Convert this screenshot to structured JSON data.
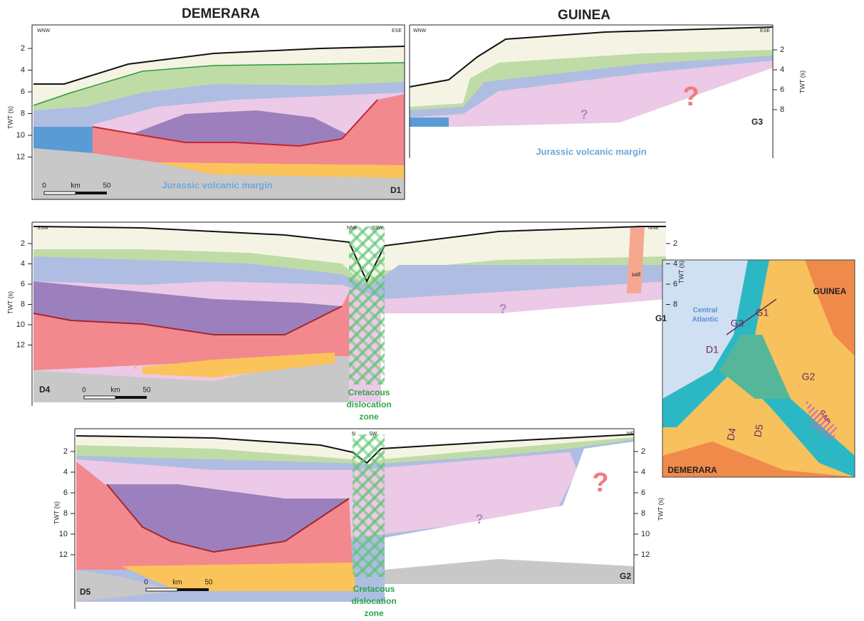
{
  "titles": {
    "demerara": "DEMERARA",
    "guinea": "GUINEA"
  },
  "axis_title": "TWT (s)",
  "sections": [
    {
      "name": "D1",
      "directions": [
        "WNW",
        "ESE"
      ],
      "ticks": [
        2,
        4,
        6,
        8,
        10,
        12
      ],
      "scale": [
        0,
        "km",
        50
      ],
      "annotation": "Jurassic volcanic margin"
    },
    {
      "name": "G3",
      "directions": [
        "WNW",
        "ESE"
      ],
      "ticks": [
        2,
        4,
        6,
        8
      ],
      "annotation": "Jurassic volcanic margin",
      "questions": [
        "?",
        "?"
      ]
    },
    {
      "name": "D4",
      "directions": [
        "SSW",
        "NNE"
      ],
      "ticks": [
        2,
        4,
        6,
        8,
        10,
        12
      ],
      "scale": [
        0,
        "km",
        50
      ],
      "questions": [
        "?"
      ]
    },
    {
      "name": "G1",
      "directions": [
        "SSW",
        "NNE"
      ],
      "ticks": [
        2,
        4,
        6,
        8
      ],
      "salt": "salt",
      "questions": [
        "?"
      ]
    },
    {
      "name": "D5",
      "directions": [
        "N"
      ],
      "ticks": [
        2,
        4,
        6,
        8,
        10,
        12
      ],
      "scale": [
        0,
        "km",
        50
      ]
    },
    {
      "name": "G2",
      "directions": [
        "SW",
        "NE"
      ],
      "ticks": [
        2,
        4,
        6,
        8,
        10,
        12
      ],
      "questions": [
        "?",
        "?"
      ]
    }
  ],
  "dislocation_zone": [
    "Cretacous",
    "dislocation",
    "zone"
  ],
  "map": {
    "guinea": "GUINEA",
    "ocean": [
      "Central",
      "Atlantic"
    ],
    "lines": [
      "G3",
      "G1",
      "G2",
      "D1",
      "D4",
      "D5"
    ],
    "gap": "GAP",
    "demerara": "DEMERARA"
  }
}
